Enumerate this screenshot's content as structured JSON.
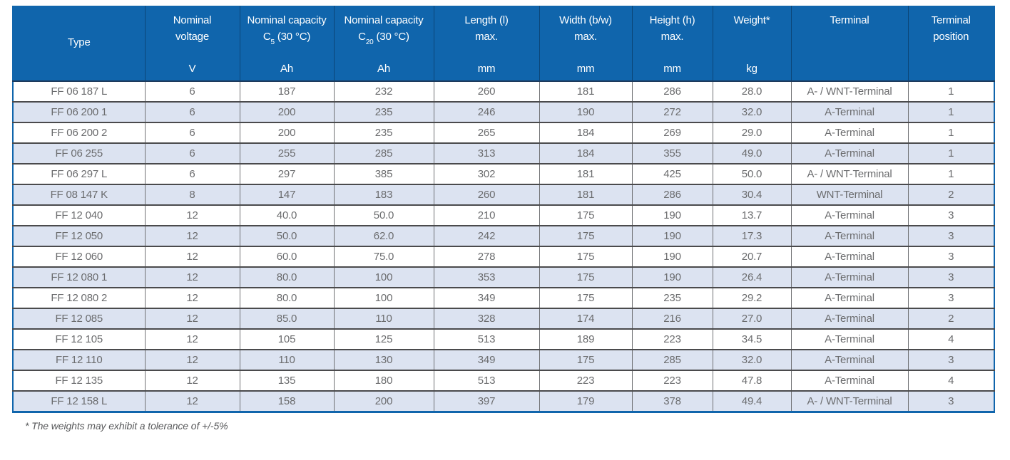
{
  "colors": {
    "header_blue": "#1065ac",
    "row_alt": "#dce3f1",
    "cell_text": "#6b6c6e",
    "row_border": "#4a4a4c",
    "footnote_text": "#58595b"
  },
  "table": {
    "columns": [
      {
        "label": "Type",
        "unit": ""
      },
      {
        "line1": "Nominal",
        "line2": "voltage",
        "unit": "V"
      },
      {
        "line1": "Nominal capacity",
        "sub_base": "C",
        "sub": "5",
        "sub_rest": " (30 °C)",
        "unit": "Ah"
      },
      {
        "line1": "Nominal capacity",
        "sub_base": "C",
        "sub": "20",
        "sub_rest": " (30 °C)",
        "unit": "Ah"
      },
      {
        "line1": "Length (l)",
        "line2": "max.",
        "unit": "mm"
      },
      {
        "line1": "Width (b/w)",
        "line2": "max.",
        "unit": "mm"
      },
      {
        "line1": "Height (h)",
        "line2": "max.",
        "unit": "mm"
      },
      {
        "label": "Weight*",
        "unit": "kg"
      },
      {
        "label": "Terminal",
        "unit": ""
      },
      {
        "line1": "Terminal",
        "line2": "position",
        "unit": ""
      }
    ],
    "rows": [
      [
        "FF 06 187 L",
        "6",
        "187",
        "232",
        "260",
        "181",
        "286",
        "28.0",
        "A- / WNT-Terminal",
        "1"
      ],
      [
        "FF 06 200 1",
        "6",
        "200",
        "235",
        "246",
        "190",
        "272",
        "32.0",
        "A-Terminal",
        "1"
      ],
      [
        "FF 06 200 2",
        "6",
        "200",
        "235",
        "265",
        "184",
        "269",
        "29.0",
        "A-Terminal",
        "1"
      ],
      [
        "FF 06 255",
        "6",
        "255",
        "285",
        "313",
        "184",
        "355",
        "49.0",
        "A-Terminal",
        "1"
      ],
      [
        "FF 06 297 L",
        "6",
        "297",
        "385",
        "302",
        "181",
        "425",
        "50.0",
        "A- / WNT-Terminal",
        "1"
      ],
      [
        "FF 08 147 K",
        "8",
        "147",
        "183",
        "260",
        "181",
        "286",
        "30.4",
        "WNT-Terminal",
        "2"
      ],
      [
        "FF 12 040",
        "12",
        "40.0",
        "50.0",
        "210",
        "175",
        "190",
        "13.7",
        "A-Terminal",
        "3"
      ],
      [
        "FF 12 050",
        "12",
        "50.0",
        "62.0",
        "242",
        "175",
        "190",
        "17.3",
        "A-Terminal",
        "3"
      ],
      [
        "FF 12 060",
        "12",
        "60.0",
        "75.0",
        "278",
        "175",
        "190",
        "20.7",
        "A-Terminal",
        "3"
      ],
      [
        "FF 12 080 1",
        "12",
        "80.0",
        "100",
        "353",
        "175",
        "190",
        "26.4",
        "A-Terminal",
        "3"
      ],
      [
        "FF 12 080 2",
        "12",
        "80.0",
        "100",
        "349",
        "175",
        "235",
        "29.2",
        "A-Terminal",
        "3"
      ],
      [
        "FF 12 085",
        "12",
        "85.0",
        "110",
        "328",
        "174",
        "216",
        "27.0",
        "A-Terminal",
        "2"
      ],
      [
        "FF 12 105",
        "12",
        "105",
        "125",
        "513",
        "189",
        "223",
        "34.5",
        "A-Terminal",
        "4"
      ],
      [
        "FF 12 110",
        "12",
        "110",
        "130",
        "349",
        "175",
        "285",
        "32.0",
        "A-Terminal",
        "3"
      ],
      [
        "FF 12 135",
        "12",
        "135",
        "180",
        "513",
        "223",
        "223",
        "47.8",
        "A-Terminal",
        "4"
      ],
      [
        "FF 12 158 L",
        "12",
        "158",
        "200",
        "397",
        "179",
        "378",
        "49.4",
        "A- / WNT-Terminal",
        "3"
      ]
    ]
  },
  "footnote": "* The weights may exhibit a tolerance of +/-5%"
}
